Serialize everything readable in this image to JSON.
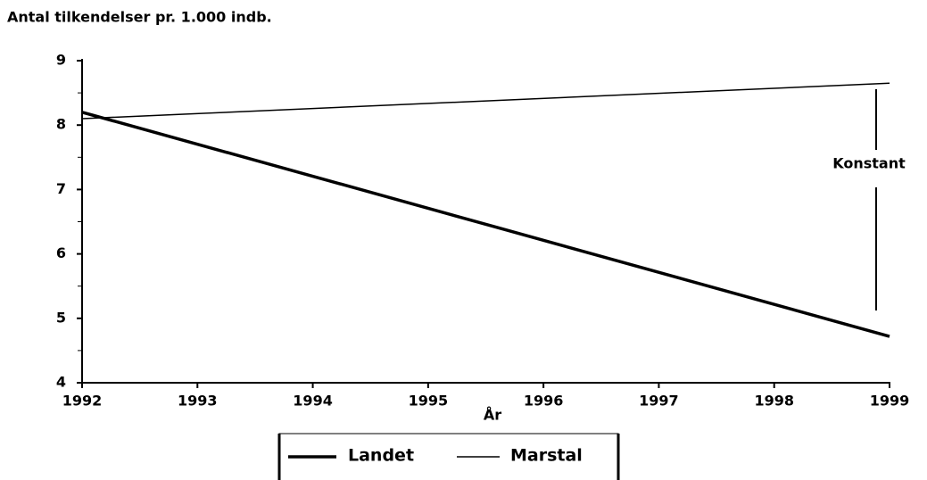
{
  "chart_data": {
    "type": "line",
    "title": "Antal tilkendelser pr. 1.000 indb.",
    "xlabel": "År",
    "annotation": "Konstant",
    "x": [
      1992,
      1999
    ],
    "series": [
      {
        "name": "Landet",
        "color": "#000000",
        "values": [
          8.2,
          4.72
        ]
      },
      {
        "name": "Marstal",
        "color": "#000000",
        "values": [
          8.1,
          8.65
        ]
      }
    ],
    "xlim": [
      1992,
      1999
    ],
    "xticks": [
      1992,
      1993,
      1994,
      1995,
      1996,
      1997,
      1998,
      1999
    ],
    "ylim": [
      4,
      9
    ],
    "yticks": [
      4,
      5,
      6,
      7,
      8,
      9
    ],
    "yticks_minor": [
      4.5,
      5.5,
      6.5,
      7.5,
      8.5
    ],
    "grid": false
  }
}
